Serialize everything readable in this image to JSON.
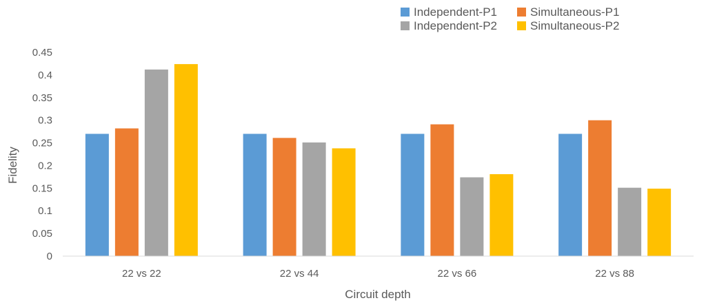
{
  "chart_data": {
    "type": "bar",
    "title": "",
    "xlabel": "Circuit depth",
    "ylabel": "Fidelity",
    "ylim": [
      0,
      0.45
    ],
    "ytick_step": 0.05,
    "ytick_labels": [
      "0",
      "0.05",
      "0.1",
      "0.15",
      "0.2",
      "0.25",
      "0.3",
      "0.35",
      "0.4",
      "0.45"
    ],
    "grid": false,
    "legend_position": "top-right",
    "categories": [
      "22 vs 22",
      "22 vs 44",
      "22 vs 66",
      "22 vs 88"
    ],
    "series": [
      {
        "name": "Independent-P1",
        "color": "#5b9bd5",
        "values": [
          0.27,
          0.27,
          0.27,
          0.27
        ]
      },
      {
        "name": "Simultaneous-P1",
        "color": "#ed7d31",
        "values": [
          0.282,
          0.261,
          0.291,
          0.3
        ]
      },
      {
        "name": "Independent-P2",
        "color": "#a5a5a5",
        "values": [
          0.412,
          0.251,
          0.174,
          0.151
        ]
      },
      {
        "name": "Simultaneous-P2",
        "color": "#ffc000",
        "values": [
          0.424,
          0.238,
          0.181,
          0.149
        ]
      }
    ]
  }
}
